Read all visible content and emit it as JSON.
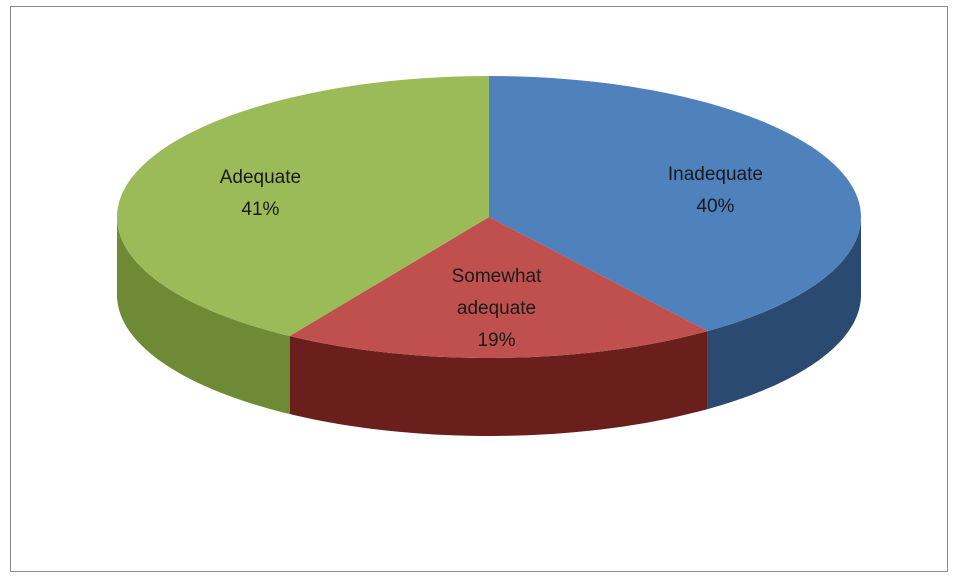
{
  "chart_data": {
    "type": "pie",
    "style": "3d",
    "slices": [
      {
        "label": "Inadequate",
        "value": 40,
        "value_label": "40%",
        "color": "#4f81bd",
        "side_color": "#2a4a72"
      },
      {
        "label": "Somewhat adequate",
        "label_lines": [
          "Somewhat",
          "adequate"
        ],
        "value": 19,
        "value_label": "19%",
        "color": "#c0504d",
        "side_color": "#6b1f1d"
      },
      {
        "label": "Adequate",
        "value": 41,
        "value_label": "41%",
        "color": "#9bbb59",
        "side_color": "#6e8a34"
      }
    ],
    "legend": "none",
    "border_color": "#8c8c8c"
  }
}
